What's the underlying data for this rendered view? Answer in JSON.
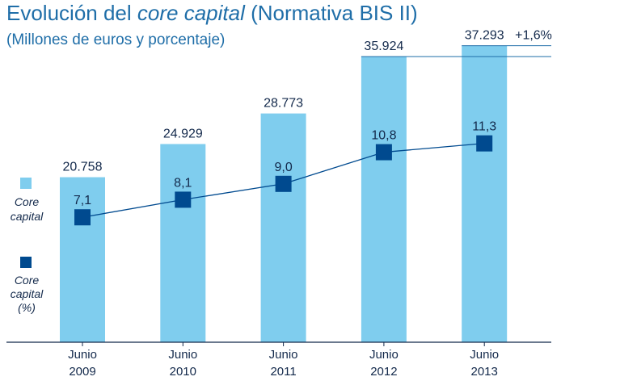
{
  "chart_data": {
    "type": "bar",
    "title_part1": "Evolución del ",
    "title_italic": "core capital",
    "title_part3": " (Normativa BIS II)",
    "subtitle": "(Millones de euros y porcentaje)",
    "categories": [
      {
        "line1": "Junio",
        "line2": "2009"
      },
      {
        "line1": "Junio",
        "line2": "2010"
      },
      {
        "line1": "Junio",
        "line2": "2011"
      },
      {
        "line1": "Junio",
        "line2": "2012"
      },
      {
        "line1": "Junio",
        "line2": "2013"
      }
    ],
    "series": [
      {
        "name": "Core capital",
        "kind": "bar",
        "values": [
          20758,
          24929,
          28773,
          35924,
          37293
        ],
        "labels": [
          "20.758",
          "24.929",
          "28.773",
          "35.924",
          "37.293"
        ],
        "color": "#7fcdee"
      },
      {
        "name": "Core capital (%)",
        "kind": "line",
        "values": [
          7.1,
          8.1,
          9.0,
          10.8,
          11.3
        ],
        "labels": [
          "7,1",
          "8,1",
          "9,0",
          "10,8",
          "11,3"
        ],
        "color": "#004a8f"
      }
    ],
    "annotation": "+1,6%",
    "legend": {
      "core_capital_line1": "Core",
      "core_capital_line2": "capital",
      "core_capital_pct_line1": "Core",
      "core_capital_pct_line2": "capital",
      "core_capital_pct_line3": "(%)"
    },
    "ylim_bar": [
      0,
      40000
    ],
    "ylim_line": [
      0,
      15
    ]
  }
}
